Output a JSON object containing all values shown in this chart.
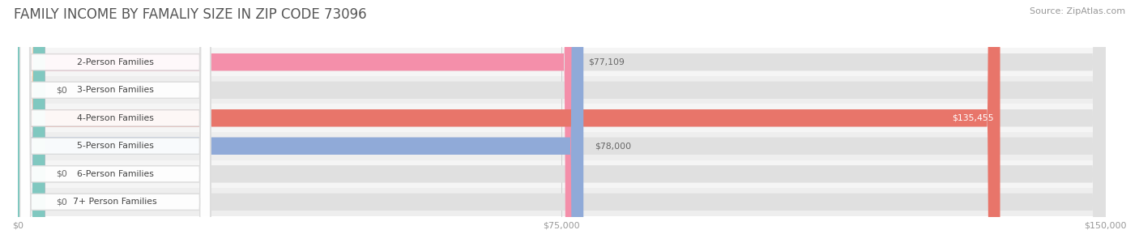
{
  "title": "FAMILY INCOME BY FAMALIY SIZE IN ZIP CODE 73096",
  "source": "Source: ZipAtlas.com",
  "categories": [
    "2-Person Families",
    "3-Person Families",
    "4-Person Families",
    "5-Person Families",
    "6-Person Families",
    "7+ Person Families"
  ],
  "values": [
    77109,
    0,
    135455,
    78000,
    0,
    0
  ],
  "bar_colors": [
    "#f48faa",
    "#f5c58a",
    "#e8756a",
    "#90aad8",
    "#c0a0d5",
    "#80c8c0"
  ],
  "value_labels": [
    "$77,109",
    "$0",
    "$135,455",
    "$78,000",
    "$0",
    "$0"
  ],
  "label_inside": [
    false,
    false,
    true,
    false,
    false,
    false
  ],
  "x_ticks": [
    0,
    75000,
    150000
  ],
  "x_tick_labels": [
    "$0",
    "$75,000",
    "$150,000"
  ],
  "xlim_max": 150000,
  "background_color": "#ffffff",
  "row_bg_light": "#f5f5f5",
  "row_bg_dark": "#eeeeee",
  "bar_bg_color": "#e0e0e0",
  "title_fontsize": 12,
  "source_fontsize": 8,
  "bar_height": 0.62
}
